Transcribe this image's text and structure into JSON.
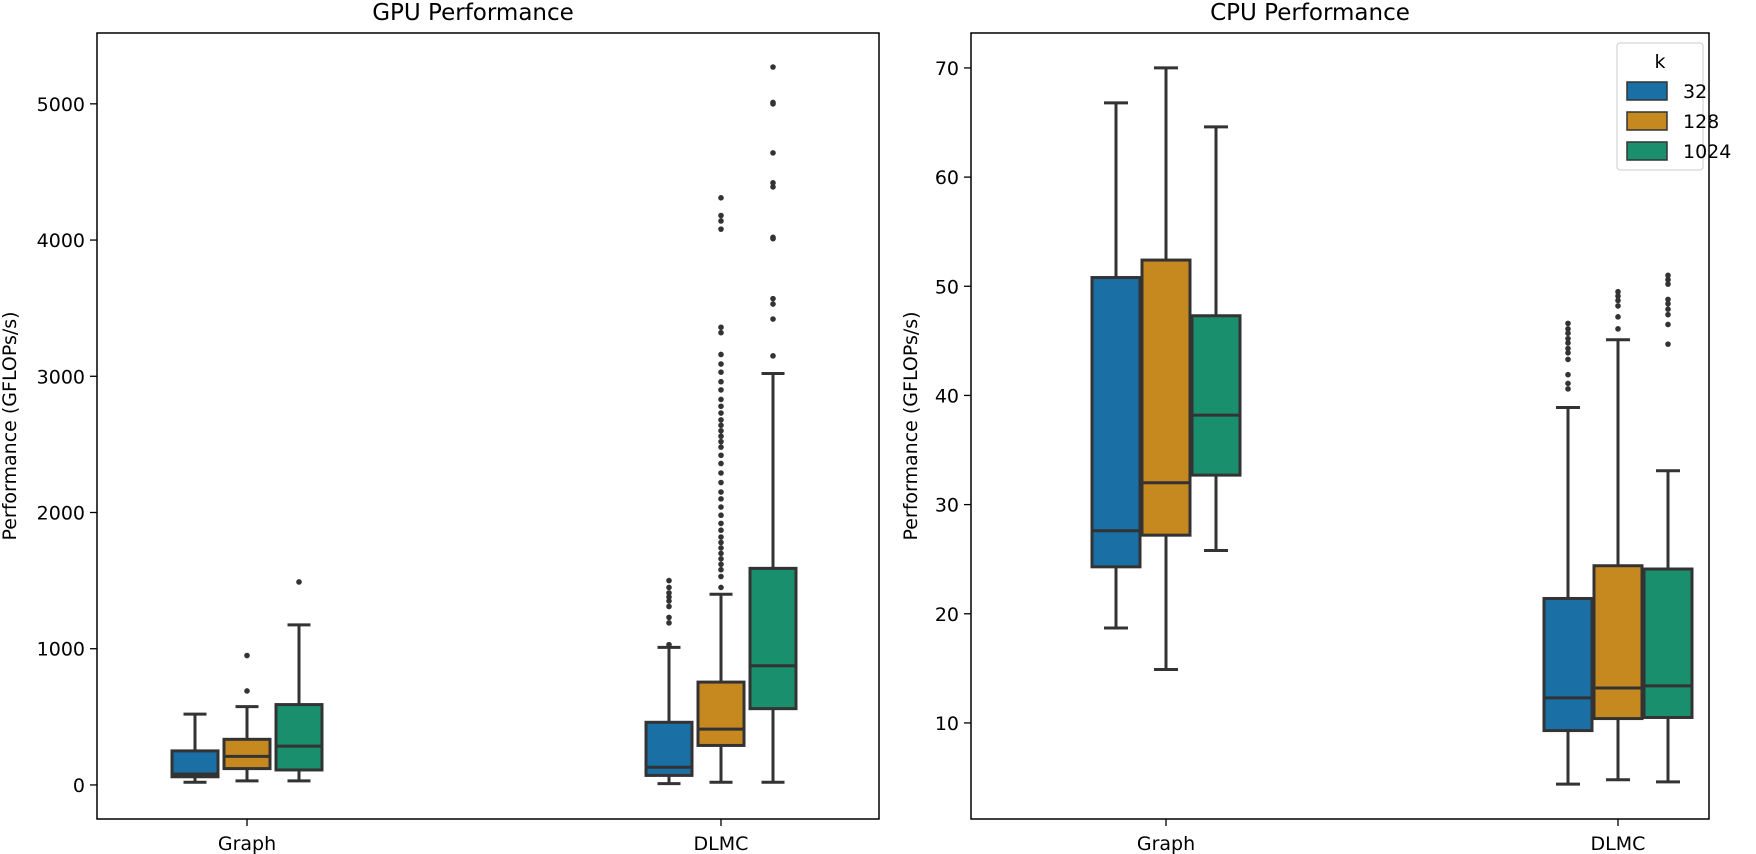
{
  "figure": {
    "background": "#ffffff",
    "box_edge_color": "#333333"
  },
  "series_colors": {
    "32": "#1a6fa5",
    "128": "#c68920",
    "1024": "#198f6e"
  },
  "chart_data": [
    {
      "type": "box",
      "title": "GPU Performance",
      "xlabel": "",
      "ylabel": "Performance (GFLOPs/s)",
      "categories": [
        "Graph",
        "DLMC"
      ],
      "ylim": [
        -250,
        5520
      ],
      "yticks": [
        0,
        1000,
        2000,
        3000,
        4000,
        5000
      ],
      "yticklabels": [
        "0",
        "1000",
        "2000",
        "3000",
        "4000",
        "5000"
      ],
      "legend": null,
      "series": [
        {
          "name": "32",
          "boxes": [
            {
              "category": "Graph",
              "whislo": 20,
              "q1": 60,
              "med": 80,
              "q3": 250,
              "whishi": 520,
              "fliers": []
            },
            {
              "category": "DLMC",
              "whislo": 10,
              "q1": 70,
              "med": 130,
              "q3": 460,
              "whishi": 1010,
              "fliers": [
                1030,
                1190,
                1230,
                1310,
                1350,
                1380,
                1410,
                1450,
                1500
              ]
            }
          ]
        },
        {
          "name": "128",
          "boxes": [
            {
              "category": "Graph",
              "whislo": 30,
              "q1": 120,
              "med": 210,
              "q3": 335,
              "whishi": 575,
              "fliers": [
                690,
                950
              ]
            },
            {
              "category": "DLMC",
              "whislo": 20,
              "q1": 290,
              "med": 410,
              "q3": 755,
              "whishi": 1400,
              "fliers": [
                1450,
                1530,
                1580,
                1620,
                1660,
                1700,
                1740,
                1780,
                1820,
                1870,
                1920,
                1980,
                2040,
                2100,
                2150,
                2220,
                2290,
                2360,
                2420,
                2480,
                2520,
                2560,
                2600,
                2640,
                2680,
                2730,
                2780,
                2830,
                2900,
                2960,
                3030,
                3090,
                3160,
                3320,
                3360,
                4080,
                4140,
                4180,
                4310
              ]
            }
          ]
        },
        {
          "name": "1024",
          "boxes": [
            {
              "category": "Graph",
              "whislo": 30,
              "q1": 110,
              "med": 285,
              "q3": 590,
              "whishi": 1175,
              "fliers": [
                1490
              ]
            },
            {
              "category": "DLMC",
              "whislo": 20,
              "q1": 560,
              "med": 875,
              "q3": 1590,
              "whishi": 3020,
              "fliers": [
                3150,
                3420,
                3530,
                3570,
                4010,
                4020,
                4390,
                4420,
                4640,
                5000,
                5010,
                5270
              ]
            }
          ]
        }
      ]
    },
    {
      "type": "box",
      "title": "CPU Performance",
      "xlabel": "",
      "ylabel": "Performance (GFLOPs/s)",
      "categories": [
        "Graph",
        "DLMC"
      ],
      "ylim": [
        1.2,
        73.2
      ],
      "yticks": [
        10,
        20,
        30,
        40,
        50,
        60,
        70
      ],
      "yticklabels": [
        "10",
        "20",
        "30",
        "40",
        "50",
        "60",
        "70"
      ],
      "legend": {
        "title": "k",
        "entries": [
          "32",
          "128",
          "1024"
        ],
        "position": "upper right"
      },
      "series": [
        {
          "name": "32",
          "boxes": [
            {
              "category": "Graph",
              "whislo": 18.7,
              "q1": 24.3,
              "med": 27.6,
              "q3": 50.8,
              "whishi": 66.8,
              "fliers": []
            },
            {
              "category": "DLMC",
              "whislo": 4.4,
              "q1": 9.3,
              "med": 12.3,
              "q3": 21.4,
              "whishi": 38.9,
              "fliers": [
                40.6,
                41.1,
                41.9,
                43.3,
                43.9,
                44.3,
                44.8,
                45.2,
                45.7,
                46.1,
                46.6
              ]
            }
          ]
        },
        {
          "name": "128",
          "boxes": [
            {
              "category": "Graph",
              "whislo": 14.9,
              "q1": 27.2,
              "med": 32.0,
              "q3": 52.4,
              "whishi": 70.0,
              "fliers": []
            },
            {
              "category": "DLMC",
              "whislo": 4.8,
              "q1": 10.4,
              "med": 13.2,
              "q3": 24.4,
              "whishi": 45.1,
              "fliers": [
                46.1,
                47.2,
                48.2,
                48.7,
                49.1,
                49.5
              ]
            }
          ]
        },
        {
          "name": "1024",
          "boxes": [
            {
              "category": "Graph",
              "whislo": 25.8,
              "q1": 32.7,
              "med": 38.2,
              "q3": 47.3,
              "whishi": 64.6,
              "fliers": []
            },
            {
              "category": "DLMC",
              "whislo": 4.6,
              "q1": 10.5,
              "med": 13.4,
              "q3": 24.1,
              "whishi": 33.1,
              "fliers": [
                44.7,
                46.5,
                47.4,
                47.9,
                48.4,
                48.8,
                50.2,
                50.6,
                51.0
              ]
            }
          ]
        }
      ]
    }
  ]
}
